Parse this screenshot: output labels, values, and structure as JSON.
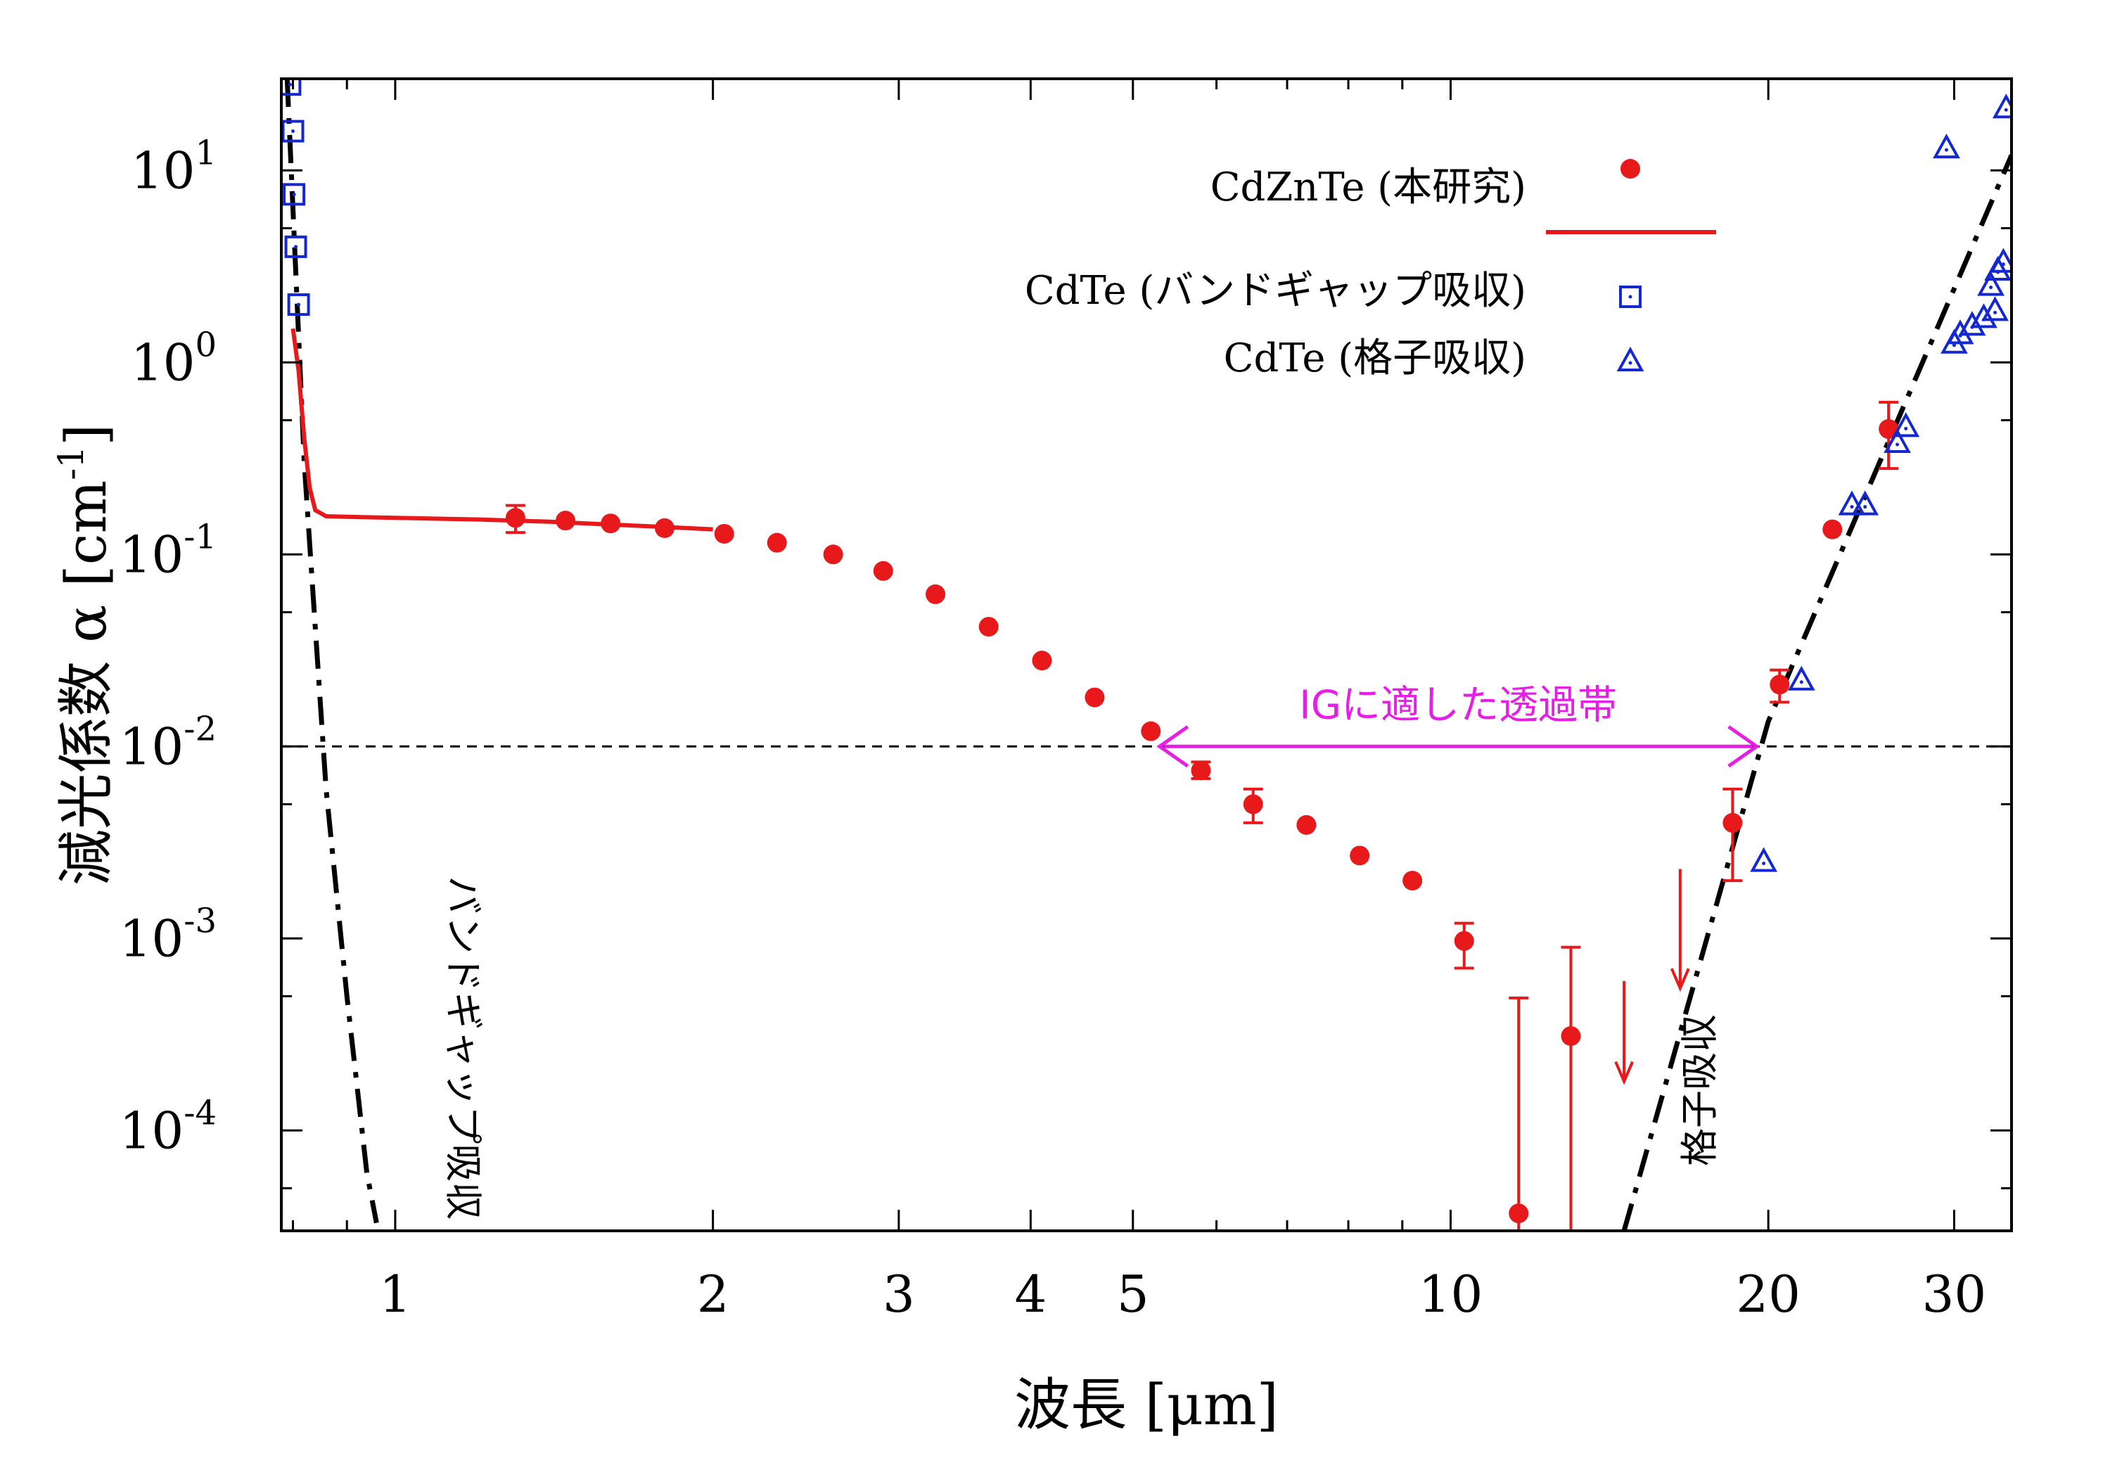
{
  "chart_data": {
    "type": "scatter",
    "xlabel": "波長 [μm]",
    "ylabel": "減光係数 α [cm",
    "ylabel_sup": "-1",
    "ylabel_close": "]",
    "x_scale": "log",
    "y_scale": "log",
    "xlim": [
      0.78,
      34
    ],
    "ylim": [
      3e-05,
      30
    ],
    "x_ticks": [
      {
        "value": 1,
        "label": "1"
      },
      {
        "value": 2,
        "label": "2"
      },
      {
        "value": 3,
        "label": "3"
      },
      {
        "value": 4,
        "label": "4"
      },
      {
        "value": 5,
        "label": "5"
      },
      {
        "value": 10,
        "label": "10"
      },
      {
        "value": 20,
        "label": "20"
      },
      {
        "value": 30,
        "label": "30"
      }
    ],
    "y_ticks": [
      {
        "value": 10,
        "base": "10",
        "exp": "1"
      },
      {
        "value": 1,
        "base": "10",
        "exp": "0"
      },
      {
        "value": 0.1,
        "base": "10",
        "exp": "-1"
      },
      {
        "value": 0.01,
        "base": "10",
        "exp": "-2"
      },
      {
        "value": 0.001,
        "base": "10",
        "exp": "-3"
      },
      {
        "value": 0.0001,
        "base": "10",
        "exp": "-4"
      }
    ],
    "grid": false,
    "legend_position": "top-right",
    "colors": {
      "cdznte": "#e8191b",
      "cdte": "#1428d2",
      "band": "#e61ee6",
      "model": "#000000"
    },
    "series": [
      {
        "name": "CdZnTe (本研究)",
        "marker": "filled-circle",
        "points": [
          {
            "x": 1.3,
            "y": 0.155,
            "lo": 0.13,
            "hi": 0.18
          },
          {
            "x": 1.45,
            "y": 0.15
          },
          {
            "x": 1.6,
            "y": 0.145
          },
          {
            "x": 1.8,
            "y": 0.137
          },
          {
            "x": 2.05,
            "y": 0.128
          },
          {
            "x": 2.3,
            "y": 0.115
          },
          {
            "x": 2.6,
            "y": 0.1
          },
          {
            "x": 2.9,
            "y": 0.082
          },
          {
            "x": 3.25,
            "y": 0.062
          },
          {
            "x": 3.65,
            "y": 0.042
          },
          {
            "x": 4.1,
            "y": 0.028
          },
          {
            "x": 4.6,
            "y": 0.018
          },
          {
            "x": 5.2,
            "y": 0.012
          },
          {
            "x": 5.8,
            "y": 0.0075,
            "lo": 0.0068,
            "hi": 0.0083
          },
          {
            "x": 6.5,
            "y": 0.005,
            "lo": 0.004,
            "hi": 0.006
          },
          {
            "x": 7.3,
            "y": 0.0039
          },
          {
            "x": 8.2,
            "y": 0.0027
          },
          {
            "x": 9.2,
            "y": 0.002
          },
          {
            "x": 10.3,
            "y": 0.00097,
            "lo": 0.0007,
            "hi": 0.0012
          },
          {
            "x": 11.6,
            "y": 3.7e-05,
            "lo": 3e-05,
            "hi": 0.00049
          },
          {
            "x": 13.0,
            "y": 0.00031,
            "lo": 3e-05,
            "hi": 0.0009
          },
          {
            "x": 18.5,
            "y": 0.004,
            "lo": 0.002,
            "hi": 0.006
          },
          {
            "x": 20.5,
            "y": 0.021,
            "lo": 0.017,
            "hi": 0.025
          },
          {
            "x": 23.0,
            "y": 0.135
          },
          {
            "x": 26.0,
            "y": 0.45,
            "lo": 0.28,
            "hi": 0.62
          }
        ],
        "upper_limits": [
          {
            "x": 14.6,
            "from": 0.0006,
            "to": 0.00018
          },
          {
            "x": 16.5,
            "from": 0.0023,
            "to": 0.00055
          }
        ],
        "line_x": [
          0.8,
          0.81,
          0.82,
          0.83,
          0.84,
          0.86,
          0.9,
          1.0,
          1.2,
          1.4,
          1.6,
          1.8,
          2.0
        ],
        "line_y": [
          1.5,
          0.9,
          0.4,
          0.22,
          0.17,
          0.158,
          0.157,
          0.155,
          0.152,
          0.148,
          0.143,
          0.139,
          0.135
        ]
      },
      {
        "name": "CdTe (バンドギャップ吸収)",
        "marker": "open-square",
        "points": [
          {
            "x": 0.795,
            "y": 28
          },
          {
            "x": 0.8,
            "y": 16
          },
          {
            "x": 0.802,
            "y": 7.5
          },
          {
            "x": 0.805,
            "y": 4
          },
          {
            "x": 0.81,
            "y": 2
          }
        ]
      },
      {
        "name": "CdTe (格子吸収)",
        "marker": "open-triangle",
        "points": [
          {
            "x": 19.8,
            "y": 0.0025
          },
          {
            "x": 21.5,
            "y": 0.022
          },
          {
            "x": 24.0,
            "y": 0.18
          },
          {
            "x": 24.7,
            "y": 0.18
          },
          {
            "x": 26.5,
            "y": 0.38
          },
          {
            "x": 27.0,
            "y": 0.46
          },
          {
            "x": 29.5,
            "y": 13
          },
          {
            "x": 30.0,
            "y": 1.25
          },
          {
            "x": 30.4,
            "y": 1.4
          },
          {
            "x": 31.2,
            "y": 1.55
          },
          {
            "x": 32.0,
            "y": 1.7
          },
          {
            "x": 32.8,
            "y": 1.85
          },
          {
            "x": 32.5,
            "y": 2.5
          },
          {
            "x": 33.0,
            "y": 3.0
          },
          {
            "x": 33.4,
            "y": 3.3
          },
          {
            "x": 33.6,
            "y": 21
          }
        ]
      }
    ],
    "model_curves": [
      {
        "label": "バンドギャップ吸収",
        "x": [
          0.79,
          0.82,
          0.86,
          0.9,
          0.94,
          0.96
        ],
        "y": [
          30,
          0.3,
          0.006,
          0.0005,
          6e-05,
          3.3e-05
        ]
      },
      {
        "label": "格子吸収",
        "x": [
          14.6,
          20.0,
          34.0
        ],
        "y": [
          3e-05,
          0.0135,
          12
        ]
      }
    ],
    "reference_line": {
      "y": 0.01,
      "style": "dashed"
    },
    "band": {
      "label": "IGに適した透過帯",
      "x_start": 5.3,
      "x_end": 19.5,
      "y": 0.01
    }
  }
}
